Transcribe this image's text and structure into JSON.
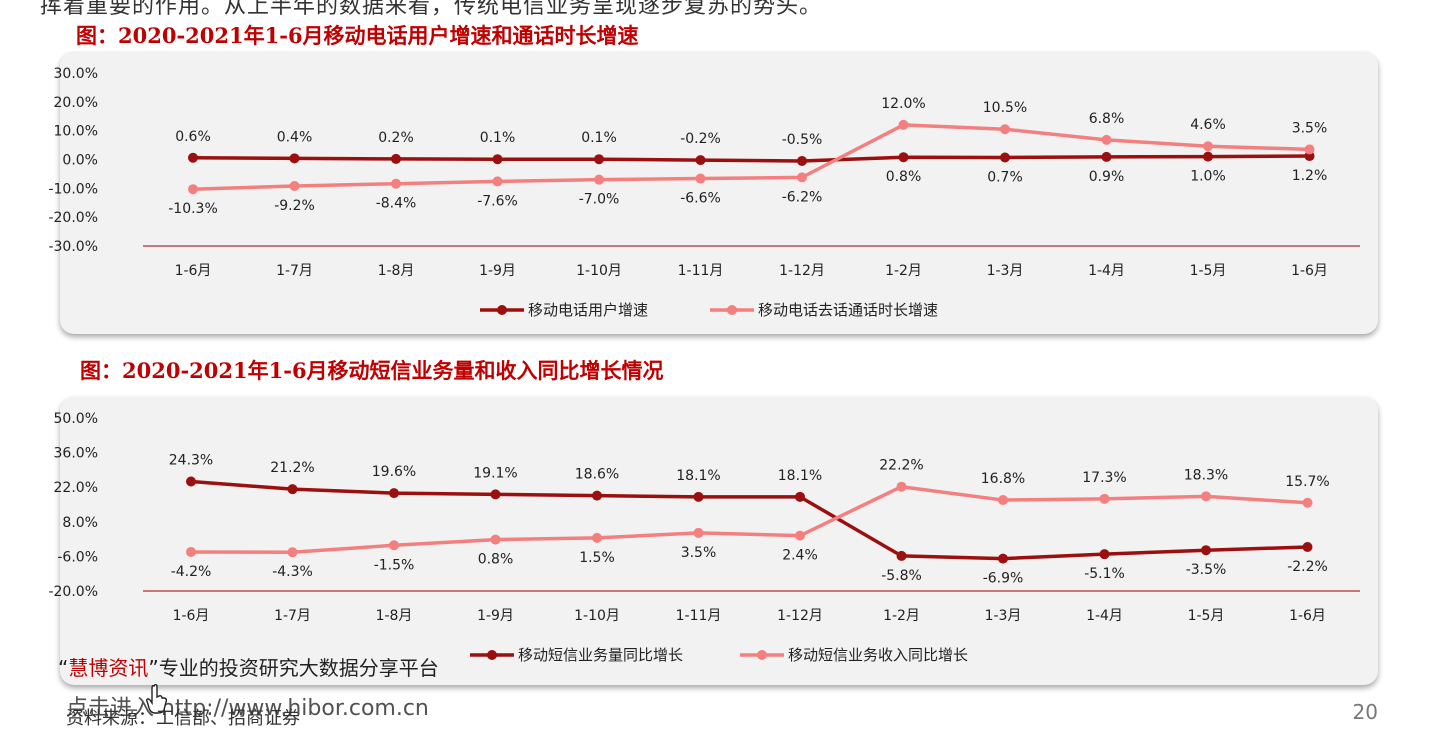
{
  "top_text": "挥着重要的作用。从上半年的数据来看，传统电信业务呈现逐步复苏的势头。",
  "figures": [
    {
      "title": "图：2020-2021年1-6月移动电话用户增速和通话时长增速",
      "legend": [
        "移动电话用户增速",
        "移动电话去话通话时长增速"
      ]
    },
    {
      "title": "图：2020-2021年1-6月移动短信业务量和收入同比增长情况",
      "legend": [
        "移动短信业务量同比增长",
        "移动短信业务收入同比增长"
      ]
    }
  ],
  "chart_data": [
    {
      "type": "line",
      "categories": [
        "1-6月",
        "1-7月",
        "1-8月",
        "1-9月",
        "1-10月",
        "1-11月",
        "1-12月",
        "1-2月",
        "1-3月",
        "1-4月",
        "1-5月",
        "1-6月"
      ],
      "ylim": [
        -30,
        30
      ],
      "yticks": [
        "30.0%",
        "20.0%",
        "10.0%",
        "0.0%",
        "-10.0%",
        "-20.0%",
        "-30.0%"
      ],
      "grid": false,
      "legend_position": "bottom",
      "series": [
        {
          "name": "移动电话用户增速",
          "color": "#9b0f0f",
          "values": [
            0.6,
            0.4,
            0.2,
            0.1,
            0.1,
            -0.2,
            -0.5,
            0.8,
            0.7,
            0.9,
            1.0,
            1.2
          ],
          "labels": [
            "0.6%",
            "0.4%",
            "0.2%",
            "0.1%",
            "0.1%",
            "-0.2%",
            "-0.5%",
            "0.8%",
            "0.7%",
            "0.9%",
            "1.0%",
            "1.2%"
          ]
        },
        {
          "name": "移动电话去话通话时长增速",
          "color": "#f47f7f",
          "values": [
            -10.3,
            -9.2,
            -8.4,
            -7.6,
            -7.0,
            -6.6,
            -6.2,
            12.0,
            10.5,
            6.8,
            4.6,
            3.5
          ],
          "labels": [
            "-10.3%",
            "-9.2%",
            "-8.4%",
            "-7.6%",
            "-7.0%",
            "-6.6%",
            "-6.2%",
            "12.0%",
            "10.5%",
            "6.8%",
            "4.6%",
            "3.5%"
          ]
        }
      ]
    },
    {
      "type": "line",
      "categories": [
        "1-6月",
        "1-7月",
        "1-8月",
        "1-9月",
        "1-10月",
        "1-11月",
        "1-12月",
        "1-2月",
        "1-3月",
        "1-4月",
        "1-5月",
        "1-6月"
      ],
      "ylim": [
        -20,
        50
      ],
      "yticks": [
        "50.0%",
        "36.0%",
        "22.0%",
        "8.0%",
        "-6.0%",
        "-20.0%"
      ],
      "grid": false,
      "legend_position": "bottom",
      "series": [
        {
          "name": "移动短信业务量同比增长",
          "color": "#9b0f0f",
          "values": [
            24.3,
            21.2,
            19.6,
            19.1,
            18.6,
            18.1,
            18.1,
            -5.8,
            -6.9,
            -5.1,
            -3.5,
            -2.2
          ],
          "labels": [
            "24.3%",
            "21.2%",
            "19.6%",
            "19.1%",
            "18.6%",
            "18.1%",
            "18.1%",
            "-5.8%",
            "-6.9%",
            "-5.1%",
            "-3.5%",
            "-2.2%"
          ]
        },
        {
          "name": "移动短信业务收入同比增长",
          "color": "#f47f7f",
          "values": [
            -4.2,
            -4.3,
            -1.5,
            0.8,
            1.5,
            3.5,
            2.4,
            22.2,
            16.8,
            17.3,
            18.3,
            15.7
          ],
          "labels": [
            "-4.2%",
            "-4.3%",
            "-1.5%",
            "0.8%",
            "1.5%",
            "3.5%",
            "2.4%",
            "22.2%",
            "16.8%",
            "17.3%",
            "18.3%",
            "15.7%"
          ]
        }
      ]
    }
  ],
  "footer": {
    "source": "资料来源：工信部、招商证券",
    "page_number": "20",
    "watermark_brand": "慧博资讯",
    "watermark_quote_open": "“",
    "watermark_quote_close": "”",
    "watermark_text": "专业的投资研究大数据分享平台",
    "watermark_url": "点击进入 http://www.hibor.com.cn"
  }
}
